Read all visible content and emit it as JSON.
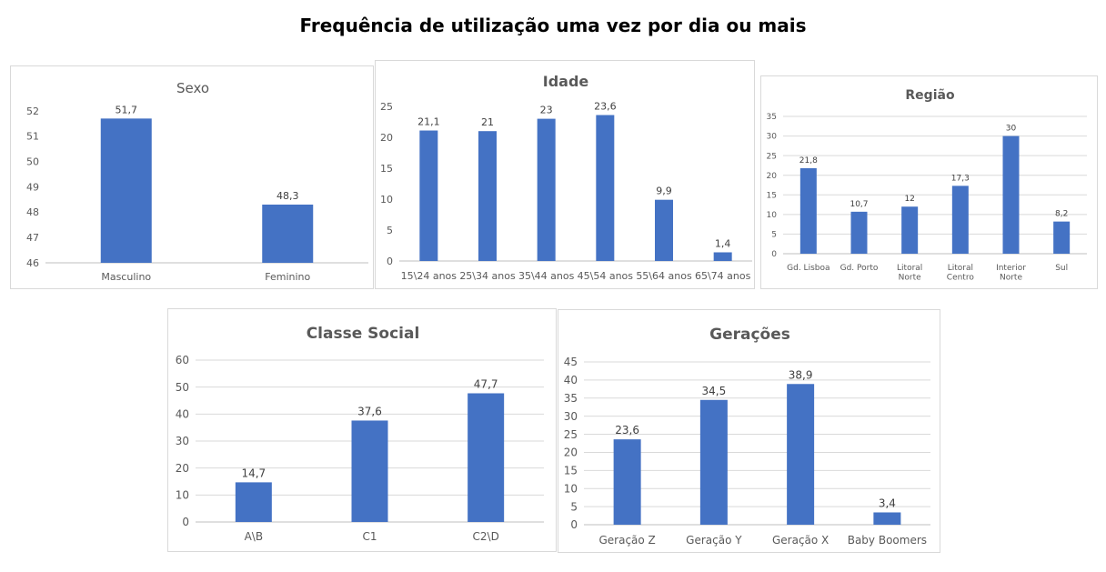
{
  "page": {
    "title": "Frequência de utilização uma vez por dia ou mais"
  },
  "colors": {
    "bar": "#4472c4"
  },
  "chart_data": [
    {
      "id": "sexo",
      "type": "bar",
      "title": "Sexo",
      "categories": [
        [
          "Masculino"
        ],
        [
          "Feminino"
        ]
      ],
      "values": [
        51.7,
        48.3
      ],
      "labels": [
        "51,7",
        "48,3"
      ],
      "ylim": [
        46,
        52
      ],
      "ystep": 1,
      "grid": false
    },
    {
      "id": "idade",
      "type": "bar",
      "title": "Idade",
      "categories": [
        [
          "15\\24 anos"
        ],
        [
          "25\\34 anos"
        ],
        [
          "35\\44 anos"
        ],
        [
          "45\\54 anos"
        ],
        [
          "55\\64 anos"
        ],
        [
          "65\\74 anos"
        ]
      ],
      "values": [
        21.1,
        21,
        23,
        23.6,
        9.9,
        1.4
      ],
      "labels": [
        "21,1",
        "21",
        "23",
        "23,6",
        "9,9",
        "1,4"
      ],
      "ylim": [
        0,
        25
      ],
      "ystep": 5,
      "grid": false
    },
    {
      "id": "regiao",
      "type": "bar",
      "title": "Região",
      "categories": [
        [
          "Gd. Lisboa"
        ],
        [
          "Gd. Porto"
        ],
        [
          "Litoral",
          "Norte"
        ],
        [
          "Litoral",
          "Centro"
        ],
        [
          "Interior",
          "Norte"
        ],
        [
          "Sul"
        ]
      ],
      "values": [
        21.8,
        10.7,
        12,
        17.3,
        30,
        8.2
      ],
      "labels": [
        "21,8",
        "10,7",
        "12",
        "17,3",
        "30",
        "8,2"
      ],
      "ylim": [
        0,
        35
      ],
      "ystep": 5,
      "grid": true
    },
    {
      "id": "classe",
      "type": "bar",
      "title": "Classe Social",
      "categories": [
        [
          "A\\B"
        ],
        [
          "C1"
        ],
        [
          "C2\\D"
        ]
      ],
      "values": [
        14.7,
        37.6,
        47.7
      ],
      "labels": [
        "14,7",
        "37,6",
        "47,7"
      ],
      "ylim": [
        0,
        60
      ],
      "ystep": 10,
      "grid": true
    },
    {
      "id": "ger",
      "type": "bar",
      "title": "Gerações",
      "categories": [
        [
          "Geração Z"
        ],
        [
          "Geração Y"
        ],
        [
          "Geração X"
        ],
        [
          "Baby Boomers"
        ]
      ],
      "values": [
        23.6,
        34.5,
        38.9,
        3.4
      ],
      "labels": [
        "23,6",
        "34,5",
        "38,9",
        "3,4"
      ],
      "ylim": [
        0,
        45
      ],
      "ystep": 5,
      "grid": true
    }
  ]
}
